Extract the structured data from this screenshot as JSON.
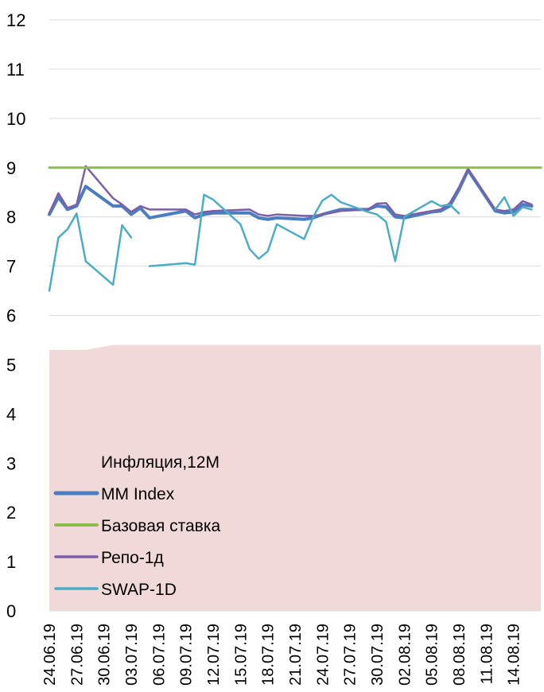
{
  "chart_data": {
    "type": "line",
    "ylim": [
      0,
      12
    ],
    "yticks": [
      "0",
      "1",
      "2",
      "3",
      "4",
      "5",
      "6",
      "7",
      "8",
      "9",
      "10",
      "11",
      "12"
    ],
    "grid": true,
    "legend_position": "bottom-left",
    "x_dates": [
      "24.06.19",
      "25.06.19",
      "26.06.19",
      "27.06.19",
      "28.06.19",
      "29.06.19",
      "30.06.19",
      "01.07.19",
      "02.07.19",
      "03.07.19",
      "04.07.19",
      "05.07.19",
      "06.07.19",
      "07.07.19",
      "08.07.19",
      "09.07.19",
      "10.07.19",
      "11.07.19",
      "12.07.19",
      "13.07.19",
      "14.07.19",
      "15.07.19",
      "16.07.19",
      "17.07.19",
      "18.07.19",
      "19.07.19",
      "20.07.19",
      "21.07.19",
      "22.07.19",
      "23.07.19",
      "24.07.19",
      "25.07.19",
      "26.07.19",
      "27.07.19",
      "28.07.19",
      "29.07.19",
      "30.07.19",
      "31.07.19",
      "01.08.19",
      "02.08.19",
      "03.08.19",
      "04.08.19",
      "05.08.19",
      "06.08.19",
      "07.08.19",
      "08.08.19",
      "09.08.19",
      "10.08.19",
      "11.08.19",
      "12.08.19",
      "13.08.19",
      "14.08.19",
      "15.08.19",
      "16.08.19",
      "17.08.19"
    ],
    "x_tick_labels": [
      "24.06.19",
      "27.06.19",
      "30.06.19",
      "03.07.19",
      "06.07.19",
      "09.07.19",
      "12.07.19",
      "15.07.19",
      "18.07.19",
      "21.07.19",
      "24.07.19",
      "27.07.19",
      "30.07.19",
      "02.08.19",
      "05.08.19",
      "08.08.19",
      "11.08.19",
      "14.08.19"
    ],
    "series": [
      {
        "name": "Инфляция,12M",
        "kind": "area",
        "color": "#f2d9d9",
        "values": [
          [
            "24.06.19",
            5.3
          ],
          [
            "28.06.19",
            5.3
          ],
          [
            "01.07.19",
            5.4
          ],
          [
            "17.08.19",
            5.4
          ]
        ]
      },
      {
        "name": "MM Index",
        "kind": "line",
        "color": "#4a7ec0",
        "width": 4,
        "values": [
          [
            "24.06.19",
            8.05
          ],
          [
            "25.06.19",
            8.4
          ],
          [
            "26.06.19",
            8.15
          ],
          [
            "27.06.19",
            8.22
          ],
          [
            "28.06.19",
            8.62
          ],
          [
            "01.07.19",
            8.22
          ],
          [
            "02.07.19",
            8.22
          ],
          [
            "03.07.19",
            8.05
          ],
          [
            "04.07.19",
            8.18
          ],
          [
            "05.07.19",
            7.98
          ],
          [
            "09.07.19",
            8.12
          ],
          [
            "10.07.19",
            7.98
          ],
          [
            "11.07.19",
            8.05
          ],
          [
            "12.07.19",
            8.08
          ],
          [
            "16.07.19",
            8.08
          ],
          [
            "17.07.19",
            7.98
          ],
          [
            "18.07.19",
            7.95
          ],
          [
            "19.07.19",
            7.98
          ],
          [
            "22.07.19",
            7.95
          ],
          [
            "23.07.19",
            7.98
          ],
          [
            "24.07.19",
            8.05
          ],
          [
            "25.07.19",
            8.1
          ],
          [
            "26.07.19",
            8.15
          ],
          [
            "29.07.19",
            8.15
          ],
          [
            "30.07.19",
            8.22
          ],
          [
            "31.07.19",
            8.2
          ],
          [
            "01.08.19",
            8.0
          ],
          [
            "02.08.19",
            7.98
          ],
          [
            "05.08.19",
            8.1
          ],
          [
            "06.08.19",
            8.12
          ],
          [
            "07.08.19",
            8.22
          ],
          [
            "08.08.19",
            8.55
          ],
          [
            "09.08.19",
            8.95
          ],
          [
            "12.08.19",
            8.12
          ],
          [
            "13.08.19",
            8.08
          ],
          [
            "14.08.19",
            8.1
          ],
          [
            "15.08.19",
            8.25
          ],
          [
            "16.08.19",
            8.22
          ]
        ]
      },
      {
        "name": "Базовая ставка",
        "kind": "line",
        "color": "#8dbb4c",
        "width": 3,
        "values": [
          [
            "24.06.19",
            9.0
          ],
          [
            "17.08.19",
            9.0
          ]
        ]
      },
      {
        "name": "Репо-1д",
        "kind": "line",
        "color": "#7b5fa8",
        "width": 2.5,
        "values": [
          [
            "24.06.19",
            8.08
          ],
          [
            "25.06.19",
            8.48
          ],
          [
            "26.06.19",
            8.18
          ],
          [
            "27.06.19",
            8.25
          ],
          [
            "28.06.19",
            9.03
          ],
          [
            "01.07.19",
            8.38
          ],
          [
            "02.07.19",
            8.25
          ],
          [
            "03.07.19",
            8.1
          ],
          [
            "04.07.19",
            8.22
          ],
          [
            "05.07.19",
            8.15
          ],
          [
            "09.07.19",
            8.15
          ],
          [
            "10.07.19",
            8.05
          ],
          [
            "11.07.19",
            8.1
          ],
          [
            "12.07.19",
            8.12
          ],
          [
            "16.07.19",
            8.15
          ],
          [
            "17.07.19",
            8.05
          ],
          [
            "18.07.19",
            8.02
          ],
          [
            "19.07.19",
            8.05
          ],
          [
            "22.07.19",
            8.02
          ],
          [
            "23.07.19",
            8.02
          ],
          [
            "24.07.19",
            8.05
          ],
          [
            "25.07.19",
            8.08
          ],
          [
            "26.07.19",
            8.12
          ],
          [
            "29.07.19",
            8.15
          ],
          [
            "30.07.19",
            8.27
          ],
          [
            "31.07.19",
            8.28
          ],
          [
            "01.08.19",
            8.05
          ],
          [
            "02.08.19",
            8.02
          ],
          [
            "05.08.19",
            8.12
          ],
          [
            "06.08.19",
            8.15
          ],
          [
            "07.08.19",
            8.28
          ],
          [
            "08.08.19",
            8.6
          ],
          [
            "09.08.19",
            8.98
          ],
          [
            "12.08.19",
            8.15
          ],
          [
            "13.08.19",
            8.12
          ],
          [
            "14.08.19",
            8.15
          ],
          [
            "15.08.19",
            8.32
          ],
          [
            "16.08.19",
            8.25
          ]
        ]
      },
      {
        "name": "SWAP-1D",
        "kind": "line",
        "color": "#4bacc6",
        "width": 2.5,
        "segments": [
          [
            [
              "24.06.19",
              6.5
            ],
            [
              "25.06.19",
              7.58
            ],
            [
              "26.06.19",
              7.75
            ],
            [
              "27.06.19",
              8.07
            ],
            [
              "28.06.19",
              7.1
            ],
            [
              "01.07.19",
              6.62
            ],
            [
              "02.07.19",
              7.83
            ],
            [
              "03.07.19",
              7.58
            ]
          ],
          [
            [
              "05.07.19",
              7.0
            ],
            [
              "09.07.19",
              7.06
            ],
            [
              "10.07.19",
              7.03
            ],
            [
              "11.07.19",
              8.45
            ],
            [
              "12.07.19",
              8.35
            ],
            [
              "15.07.19",
              7.85
            ],
            [
              "16.07.19",
              7.35
            ],
            [
              "17.07.19",
              7.15
            ],
            [
              "18.07.19",
              7.3
            ],
            [
              "19.07.19",
              7.85
            ],
            [
              "22.07.19",
              7.55
            ],
            [
              "23.07.19",
              8.0
            ],
            [
              "24.07.19",
              8.33
            ],
            [
              "25.07.19",
              8.45
            ],
            [
              "26.07.19",
              8.3
            ],
            [
              "29.07.19",
              8.1
            ],
            [
              "30.07.19",
              8.05
            ],
            [
              "31.07.19",
              7.9
            ],
            [
              "01.08.19",
              7.1
            ],
            [
              "02.08.19",
              8.0
            ],
            [
              "05.08.19",
              8.32
            ],
            [
              "06.08.19",
              8.22
            ],
            [
              "07.08.19",
              8.25
            ],
            [
              "08.08.19",
              8.07
            ]
          ],
          [
            [
              "12.08.19",
              8.15
            ],
            [
              "13.08.19",
              8.4
            ],
            [
              "14.08.19",
              8.02
            ],
            [
              "15.08.19",
              8.2
            ],
            [
              "16.08.19",
              8.15
            ]
          ]
        ]
      }
    ]
  }
}
